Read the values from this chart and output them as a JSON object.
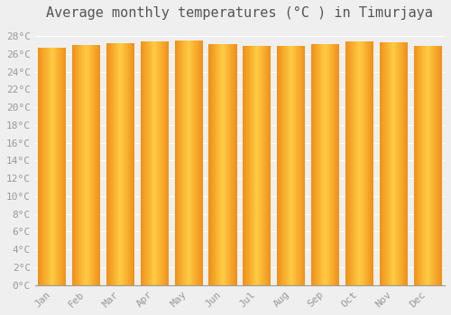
{
  "title": "Average monthly temperatures (°C ) in Timurjaya",
  "months": [
    "Jan",
    "Feb",
    "Mar",
    "Apr",
    "May",
    "Jun",
    "Jul",
    "Aug",
    "Sep",
    "Oct",
    "Nov",
    "Dec"
  ],
  "values": [
    26.7,
    27.0,
    27.2,
    27.4,
    27.5,
    27.1,
    26.9,
    26.9,
    27.1,
    27.4,
    27.3,
    26.9
  ],
  "ylim": [
    0,
    29
  ],
  "ytick_step": 2,
  "bar_color_left": "#F0901A",
  "bar_color_mid": "#FFCC44",
  "bar_color_right": "#F0901A",
  "background_color": "#EFEFEF",
  "grid_color": "#FFFFFF",
  "title_fontsize": 11,
  "tick_fontsize": 8,
  "tick_color": "#999999"
}
